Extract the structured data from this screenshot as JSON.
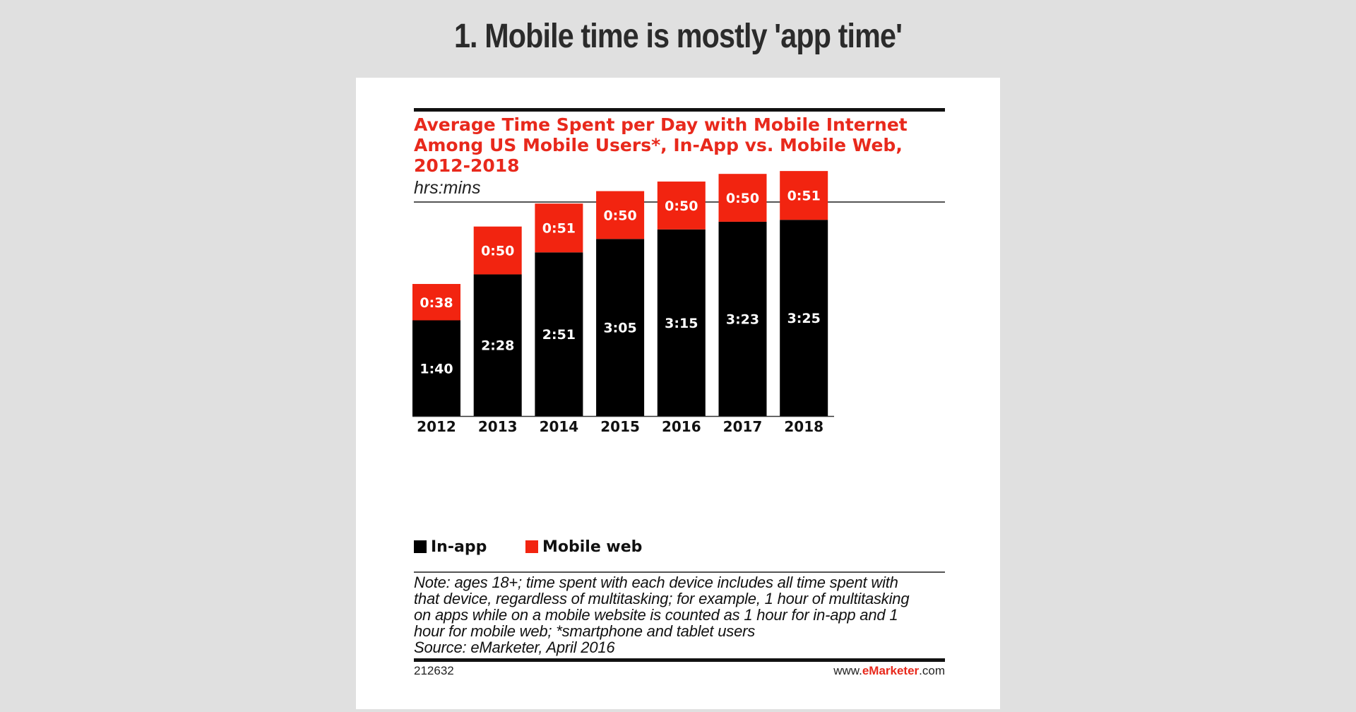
{
  "slide_title": "1. Mobile time is mostly 'app time'",
  "colors": {
    "inapp": "#000000",
    "mobile_web": "#f22410",
    "accent_red": "#e8291c"
  },
  "chart_data": {
    "type": "bar",
    "stacked": true,
    "title": "Average Time Spent per Day with Mobile Internet\nAmong US Mobile Users*, In-App vs. Mobile Web,\n2012-2018",
    "unit_label": "hrs:mins",
    "categories": [
      "2012",
      "2013",
      "2014",
      "2015",
      "2016",
      "2017",
      "2018"
    ],
    "series": [
      {
        "name": "In-app",
        "values_minutes": [
          100,
          148,
          171,
          185,
          195,
          203,
          205
        ],
        "labels": [
          "1:40",
          "2:28",
          "2:51",
          "3:05",
          "3:15",
          "3:23",
          "3:25"
        ]
      },
      {
        "name": "Mobile web",
        "values_minutes": [
          38,
          50,
          51,
          50,
          50,
          50,
          51
        ],
        "labels": [
          "0:38",
          "0:50",
          "0:51",
          "0:50",
          "0:50",
          "0:50",
          "0:51"
        ]
      }
    ],
    "legend_position": "bottom-left",
    "grid": false,
    "note": [
      "Note: ages 18+; time spent with each device includes all time spent with",
      "that device, regardless of multitasking; for example, 1 hour of multitasking",
      "on apps while on a mobile website is counted as 1 hour for in-app and 1",
      "hour for mobile web; *smartphone and tablet users",
      "Source: eMarketer, April 2016"
    ],
    "chart_id": "212632",
    "brand": {
      "prefix": "www.",
      "name": "eMarketer",
      "suffix": ".com"
    }
  }
}
